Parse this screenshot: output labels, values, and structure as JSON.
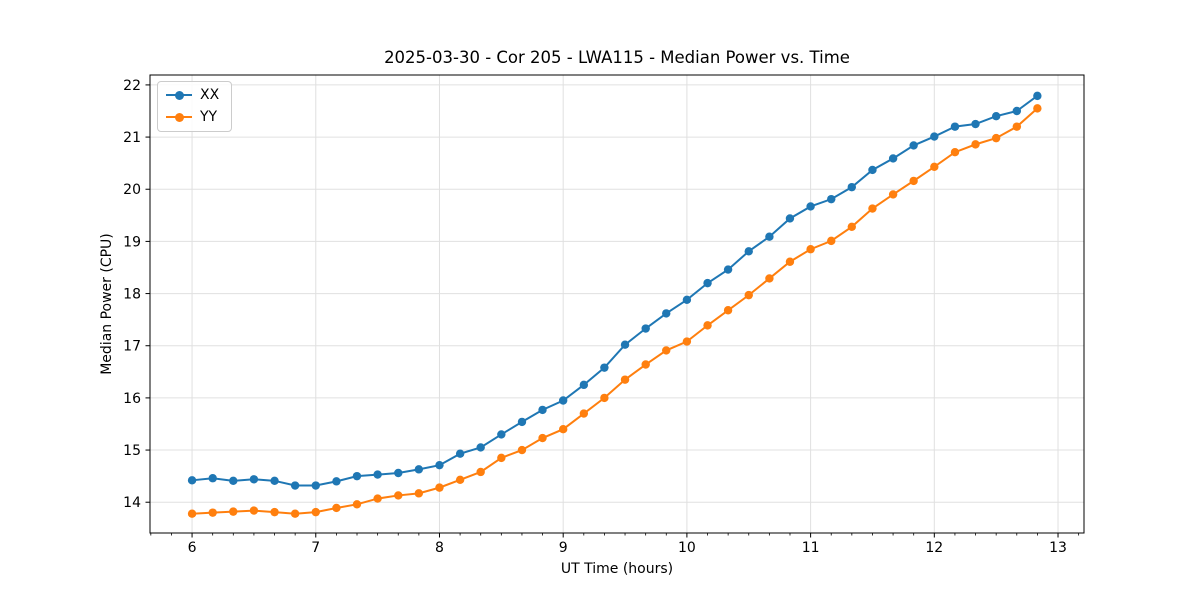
{
  "figure": {
    "legend": {
      "position": "upper-left",
      "entries": [
        {
          "label": "XX",
          "color": "#1f77b4"
        },
        {
          "label": "YY",
          "color": "#ff7f0e"
        }
      ]
    }
  },
  "chart_data": {
    "type": "line",
    "title": "2025-03-30 - Cor 205 - LWA115 - Median Power vs. Time",
    "xlabel": "UT Time (hours)",
    "ylabel": "Median Power (CPU)",
    "xlim": [
      5.66,
      13.21
    ],
    "ylim": [
      13.41,
      22.19
    ],
    "x_ticks": [
      6,
      7,
      8,
      9,
      10,
      11,
      12,
      13
    ],
    "y_ticks": [
      14,
      15,
      16,
      17,
      18,
      19,
      20,
      21,
      22
    ],
    "x_minor_tick_step_hours": 0.1667,
    "grid": true,
    "grid_color": "#e0e0e0",
    "marker": "circle",
    "x": [
      6.0,
      6.167,
      6.333,
      6.5,
      6.667,
      6.833,
      7.0,
      7.167,
      7.333,
      7.5,
      7.667,
      7.833,
      8.0,
      8.167,
      8.333,
      8.5,
      8.667,
      8.833,
      9.0,
      9.167,
      9.333,
      9.5,
      9.667,
      9.833,
      10.0,
      10.167,
      10.333,
      10.5,
      10.667,
      10.833,
      11.0,
      11.167,
      11.333,
      11.5,
      11.667,
      11.833,
      12.0,
      12.167,
      12.333,
      12.5,
      12.667,
      12.833
    ],
    "series": [
      {
        "name": "XX",
        "color": "#1f77b4",
        "values": [
          14.42,
          14.46,
          14.41,
          14.44,
          14.41,
          14.32,
          14.32,
          14.4,
          14.5,
          14.53,
          14.56,
          14.63,
          14.71,
          14.93,
          15.05,
          15.3,
          15.54,
          15.77,
          15.95,
          16.25,
          16.58,
          17.02,
          17.33,
          17.62,
          17.88,
          18.2,
          18.46,
          18.81,
          19.09,
          19.44,
          19.67,
          19.81,
          20.04,
          20.37,
          20.59,
          20.84,
          21.01,
          21.2,
          21.25,
          21.4,
          21.5,
          21.79
        ]
      },
      {
        "name": "YY",
        "color": "#ff7f0e",
        "values": [
          13.78,
          13.8,
          13.82,
          13.84,
          13.81,
          13.78,
          13.81,
          13.89,
          13.96,
          14.07,
          14.13,
          14.17,
          14.28,
          14.43,
          14.58,
          14.85,
          15.0,
          15.23,
          15.4,
          15.7,
          16.0,
          16.35,
          16.64,
          16.91,
          17.08,
          17.39,
          17.68,
          17.97,
          18.29,
          18.61,
          18.85,
          19.01,
          19.28,
          19.63,
          19.9,
          20.16,
          20.43,
          20.71,
          20.86,
          20.98,
          21.2,
          21.55
        ]
      }
    ]
  }
}
